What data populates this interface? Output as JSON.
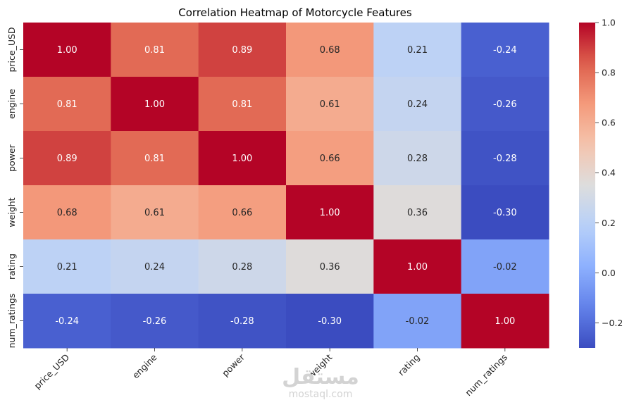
{
  "chart_data": {
    "type": "heatmap",
    "title": "Correlation Heatmap of Motorcycle Features",
    "xlabels": [
      "price_USD",
      "engine",
      "power",
      "weight",
      "rating",
      "num_ratings"
    ],
    "ylabels": [
      "price_USD",
      "engine",
      "power",
      "weight",
      "rating",
      "num_ratings"
    ],
    "values": [
      [
        1.0,
        0.81,
        0.89,
        0.68,
        0.21,
        -0.24
      ],
      [
        0.81,
        1.0,
        0.81,
        0.61,
        0.24,
        -0.26
      ],
      [
        0.89,
        0.81,
        1.0,
        0.66,
        0.28,
        -0.28
      ],
      [
        0.68,
        0.61,
        0.66,
        1.0,
        0.36,
        -0.3
      ],
      [
        0.21,
        0.24,
        0.28,
        0.36,
        1.0,
        -0.02
      ],
      [
        -0.24,
        -0.26,
        -0.28,
        -0.3,
        -0.02,
        1.0
      ]
    ],
    "colormap": "coolwarm",
    "vmin": -0.3,
    "vmax": 1.0,
    "colorbar_ticks": [
      -0.2,
      0.0,
      0.2,
      0.4,
      0.6,
      0.8,
      1.0
    ],
    "colorbar_tick_labels": [
      "−0.2",
      "0.0",
      "0.2",
      "0.4",
      "0.6",
      "0.8",
      "1.0"
    ]
  },
  "watermark": {
    "arabic": "مستقل",
    "latin": "mostaql.com"
  },
  "colors": {
    "text_dark": "#262626",
    "text_light": "#ffffff"
  }
}
